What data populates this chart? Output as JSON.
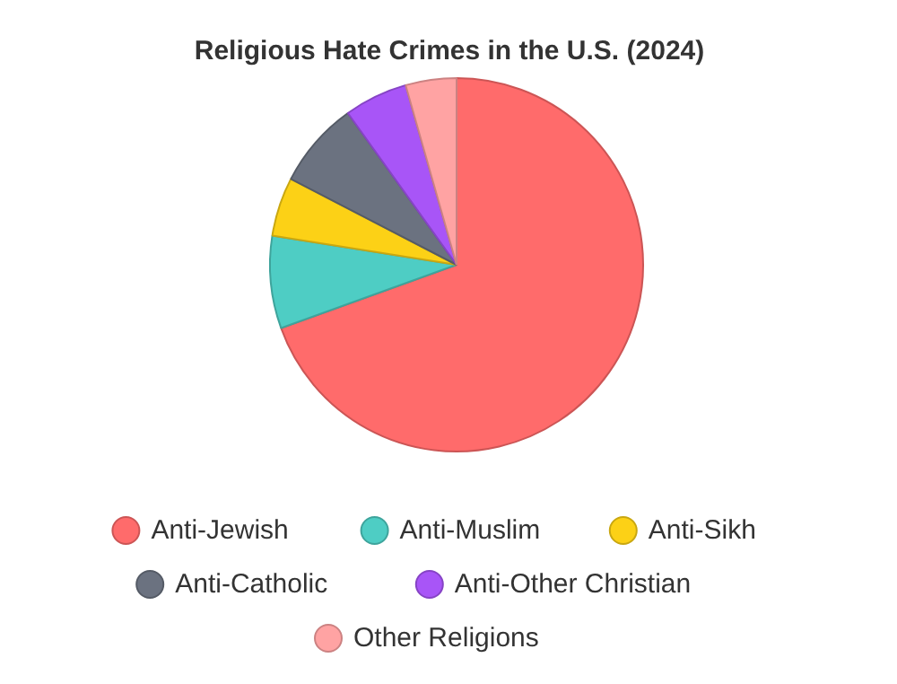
{
  "chart_data": {
    "type": "pie",
    "title": "Religious Hate Crimes in the U.S. (2024)",
    "categories": [
      "Anti-Jewish",
      "Anti-Muslim",
      "Anti-Sikh",
      "Anti-Catholic",
      "Anti-Other Christian",
      "Other Religions"
    ],
    "values": [
      69.5,
      8.0,
      5.1,
      7.5,
      5.5,
      4.4
    ],
    "colors": [
      "#ff6b6b",
      "#4ecdc4",
      "#fcd116",
      "#6b7280",
      "#a855f7",
      "#ffa3a3"
    ],
    "legend": "bottom",
    "marker": "circle"
  }
}
